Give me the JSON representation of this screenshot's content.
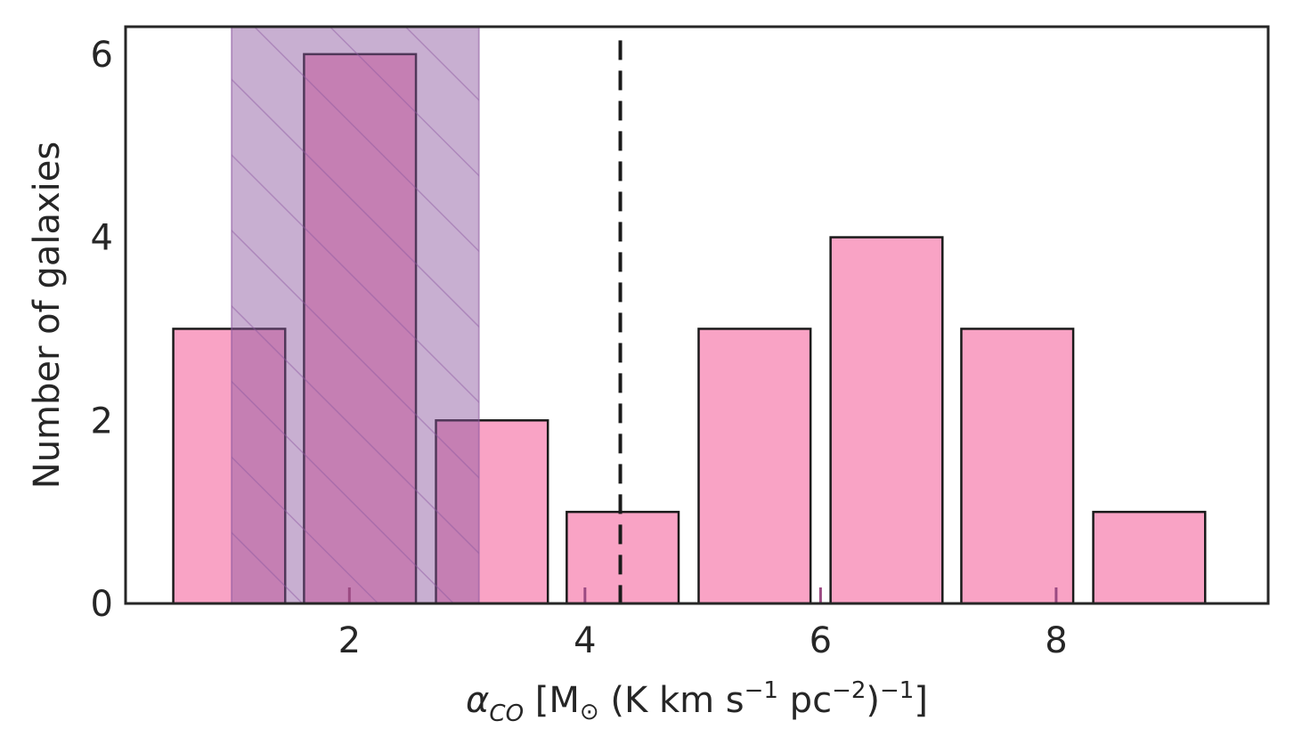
{
  "chart_data": {
    "type": "bar",
    "bars": [
      {
        "x": 0.98,
        "width": 0.95,
        "value": 3
      },
      {
        "x": 2.09,
        "width": 0.95,
        "value": 6
      },
      {
        "x": 3.21,
        "width": 0.95,
        "value": 2
      },
      {
        "x": 4.32,
        "width": 0.95,
        "value": 1
      },
      {
        "x": 5.44,
        "width": 0.95,
        "value": 3
      },
      {
        "x": 6.56,
        "width": 0.95,
        "value": 4
      },
      {
        "x": 7.67,
        "width": 0.95,
        "value": 3
      },
      {
        "x": 8.79,
        "width": 0.95,
        "value": 1
      }
    ],
    "shaded_band": {
      "x_start": 1.0,
      "x_end": 3.1
    },
    "reference_line_x": 4.3,
    "xlim": [
      0.1,
      9.8
    ],
    "ylim": [
      0,
      6.3
    ],
    "xticks": [
      "2",
      "4",
      "6",
      "8"
    ],
    "xtick_values": [
      2,
      4,
      6,
      8
    ],
    "yticks": [
      "0",
      "2",
      "4",
      "6"
    ],
    "ytick_values": [
      0,
      2,
      4,
      6
    ],
    "xlabel_parts": {
      "alpha": "α",
      "sub": "CO",
      "open": " [M",
      "sun": "⊙",
      "mid1": " (K km s",
      "exp1": "−1",
      "mid2": " pc",
      "exp2": "−2",
      "close1": ")",
      "exp3": "−1",
      "close2": "]"
    },
    "ylabel": "Number of galaxies",
    "grid": false,
    "colors": {
      "bar_fill": "#f9a3c5",
      "bar_edge": "#1a1a1a",
      "band_fill": "#8b579f",
      "band_hatch": "#8b579f",
      "ref_line": "#1a1a1a",
      "axis": "#262626"
    }
  }
}
